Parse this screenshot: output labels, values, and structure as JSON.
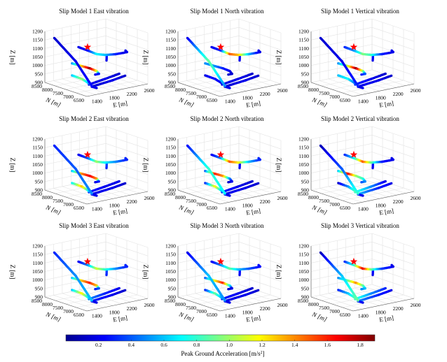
{
  "chart_data": [
    {
      "type": "scatter3d",
      "grid_position": "row1-col1",
      "title": "Slip Model 1 East vibration",
      "model": 1,
      "component": "East",
      "hotspots": {
        "upper": [
          0.2,
          0.25,
          0.7,
          0.6,
          0.3,
          0.2,
          0.2,
          0.2
        ],
        "middle": [
          0.5,
          1.3,
          1.85,
          1.2,
          0.3,
          0.2
        ],
        "lowerleft": [
          0.6,
          1.0,
          0.5
        ],
        "ramp": [
          0.15,
          0.2,
          0.25
        ],
        "floorA": [
          0.2,
          0.2,
          0.15
        ],
        "floorB": [
          0.15,
          0.2,
          0.15
        ],
        "branch": [
          0.3,
          0.2
        ],
        "stub": [
          0.2,
          0.2
        ]
      }
    },
    {
      "type": "scatter3d",
      "grid_position": "row1-col2",
      "title": "Slip Model 1 North vibration",
      "model": 1,
      "component": "North",
      "hotspots": {
        "upper": [
          0.2,
          0.3,
          1.5,
          1.3,
          0.6,
          0.3,
          0.2,
          0.2
        ],
        "middle": [
          0.5,
          0.5,
          0.3,
          0.2,
          0.15,
          0.15
        ],
        "lowerleft": [
          0.2,
          0.25,
          0.2
        ],
        "ramp": [
          0.2,
          0.9,
          0.5
        ],
        "floorA": [
          0.2,
          0.2,
          0.15
        ],
        "floorB": [
          0.15,
          0.2,
          0.15
        ],
        "branch": [
          0.3,
          0.2
        ],
        "stub": [
          0.2,
          0.2
        ]
      }
    },
    {
      "type": "scatter3d",
      "grid_position": "row1-col3",
      "title": "Slip Model 1 Vertical vibration",
      "model": 1,
      "component": "Vertical",
      "hotspots": {
        "upper": [
          0.3,
          0.5,
          0.95,
          0.8,
          0.3,
          0.2,
          0.2,
          0.2
        ],
        "middle": [
          0.5,
          1.1,
          1.85,
          1.0,
          0.4,
          0.3
        ],
        "lowerleft": [
          0.6,
          0.7,
          0.4
        ],
        "ramp": [
          0.15,
          0.2,
          0.3
        ],
        "floorA": [
          0.3,
          0.2,
          0.15
        ],
        "floorB": [
          0.2,
          0.2,
          0.15
        ],
        "branch": [
          0.3,
          0.2
        ],
        "stub": [
          0.2,
          0.2
        ]
      }
    },
    {
      "type": "scatter3d",
      "grid_position": "row2-col1",
      "title": "Slip Model 2 East vibration",
      "model": 2,
      "component": "East",
      "hotspots": {
        "upper": [
          0.2,
          0.4,
          1.0,
          0.7,
          0.5,
          0.35,
          0.3,
          0.3
        ],
        "middle": [
          0.6,
          1.4,
          1.7,
          1.4,
          0.3,
          0.2
        ],
        "lowerleft": [
          0.7,
          1.3,
          0.6
        ],
        "ramp": [
          0.3,
          0.4,
          0.5
        ],
        "floorA": [
          0.3,
          0.2,
          0.2
        ],
        "floorB": [
          0.2,
          0.2,
          0.15
        ],
        "branch": [
          0.4,
          0.3
        ],
        "stub": [
          0.2,
          0.2
        ]
      }
    },
    {
      "type": "scatter3d",
      "grid_position": "row2-col2",
      "title": "Slip Model 2 North vibration",
      "model": 2,
      "component": "North",
      "hotspots": {
        "upper": [
          0.2,
          0.5,
          1.5,
          1.2,
          0.6,
          0.4,
          0.3,
          0.3
        ],
        "middle": [
          0.4,
          1.6,
          1.4,
          0.5,
          0.2,
          0.15
        ],
        "lowerleft": [
          0.3,
          1.2,
          0.5
        ],
        "ramp": [
          0.25,
          0.8,
          0.7
        ],
        "floorA": [
          0.3,
          0.2,
          0.15
        ],
        "floorB": [
          0.2,
          0.2,
          0.15
        ],
        "branch": [
          0.3,
          0.2
        ],
        "stub": [
          0.2,
          0.2
        ]
      }
    },
    {
      "type": "scatter3d",
      "grid_position": "row2-col3",
      "title": "Slip Model 2 Vertical vibration",
      "model": 2,
      "component": "Vertical",
      "hotspots": {
        "upper": [
          0.3,
          0.7,
          1.5,
          0.9,
          0.3,
          0.2,
          0.2,
          0.2
        ],
        "middle": [
          0.6,
          1.7,
          1.0,
          0.8,
          0.5,
          0.4
        ],
        "lowerleft": [
          0.15,
          0.5,
          0.9
        ],
        "ramp": [
          0.1,
          0.4,
          0.8
        ],
        "floorA": [
          0.8,
          0.5,
          0.2
        ],
        "floorB": [
          0.6,
          0.3,
          0.2
        ],
        "branch": [
          0.3,
          0.2
        ],
        "stub": [
          0.3,
          0.2
        ]
      }
    },
    {
      "type": "scatter3d",
      "grid_position": "row3-col1",
      "title": "Slip Model 3 East vibration",
      "model": 3,
      "component": "East",
      "hotspots": {
        "upper": [
          0.2,
          0.5,
          1.1,
          0.8,
          0.5,
          0.35,
          0.3,
          0.3
        ],
        "middle": [
          0.6,
          1.3,
          1.6,
          1.3,
          0.4,
          0.3
        ],
        "lowerleft": [
          0.6,
          1.2,
          0.6
        ],
        "ramp": [
          0.3,
          0.5,
          0.6
        ],
        "floorA": [
          0.5,
          0.3,
          0.2
        ],
        "floorB": [
          0.3,
          0.2,
          0.15
        ],
        "branch": [
          0.4,
          0.3
        ],
        "stub": [
          0.2,
          0.2
        ]
      }
    },
    {
      "type": "scatter3d",
      "grid_position": "row3-col2",
      "title": "Slip Model 3 North vibration",
      "model": 3,
      "component": "North",
      "hotspots": {
        "upper": [
          0.2,
          0.5,
          0.9,
          0.6,
          0.4,
          0.3,
          0.25,
          0.25
        ],
        "middle": [
          0.4,
          1.2,
          1.6,
          0.7,
          0.2,
          0.15
        ],
        "lowerleft": [
          0.3,
          0.9,
          0.5
        ],
        "ramp": [
          0.2,
          0.6,
          0.5
        ],
        "floorA": [
          0.3,
          0.2,
          0.15
        ],
        "floorB": [
          0.2,
          0.2,
          0.15
        ],
        "branch": [
          0.3,
          0.2
        ],
        "stub": [
          0.2,
          0.2
        ]
      }
    },
    {
      "type": "scatter3d",
      "grid_position": "row3-col3",
      "title": "Slip Model 3 Vertical vibration",
      "model": 3,
      "component": "Vertical",
      "hotspots": {
        "upper": [
          0.3,
          0.8,
          1.7,
          0.9,
          0.35,
          0.25,
          0.2,
          0.2
        ],
        "middle": [
          0.5,
          0.9,
          1.4,
          0.9,
          0.6,
          0.5
        ],
        "lowerleft": [
          0.3,
          0.6,
          0.9
        ],
        "ramp": [
          0.1,
          0.6,
          0.9
        ],
        "floorA": [
          0.8,
          0.5,
          0.3
        ],
        "floorB": [
          0.5,
          0.3,
          0.2
        ],
        "branch": [
          0.3,
          0.2
        ],
        "stub": [
          0.3,
          0.2
        ]
      }
    }
  ],
  "shared": {
    "xlabel": "E [m]",
    "ylabel": "N [m]",
    "zlabel": "Z [m]",
    "x_ticks": [
      1400,
      1800,
      2200,
      2600
    ],
    "y_ticks": [
      8500,
      8000,
      7500,
      7000,
      6500
    ],
    "z_ticks": [
      900,
      950,
      1000,
      1050,
      1100,
      1150,
      1200
    ],
    "xlim": [
      1200,
      2600
    ],
    "ylim": [
      6500,
      8500
    ],
    "zlim": [
      900,
      1200
    ],
    "grid": true,
    "source_marker": {
      "symbol": "star",
      "color": "#ff0000",
      "E": 1973,
      "N": 8070,
      "Z": 1085
    },
    "tunnels": {
      "upper": [
        [
          1915,
          8380,
          1075
        ],
        [
          1900,
          7900,
          1075
        ],
        [
          1875,
          7430,
          1075
        ],
        [
          1960,
          7200,
          1075
        ],
        [
          2143,
          7080,
          1075
        ],
        [
          2300,
          7060,
          1075
        ],
        [
          2391,
          7060,
          1075
        ],
        [
          2400,
          7150,
          1080
        ]
      ],
      "branch": [
        [
          1985,
          7180,
          1072
        ],
        [
          1960,
          7140,
          1045
        ]
      ],
      "middle": [
        [
          1748,
          8340,
          990
        ],
        [
          1768,
          7910,
          990
        ],
        [
          1788,
          7580,
          990
        ],
        [
          1768,
          7210,
          990
        ],
        [
          1679,
          6920,
          990
        ],
        [
          1599,
          6930,
          990
        ]
      ],
      "lowerleft": [
        [
          1778,
          8400,
          915
        ],
        [
          1768,
          7910,
          915
        ],
        [
          1669,
          7340,
          915
        ]
      ],
      "ramp": [
        [
          1418,
          8500,
          1150
        ],
        [
          1816,
          8310,
          1000
        ],
        [
          1680,
          7260,
          905
        ]
      ],
      "floorA": [
        [
          1700,
          7440,
          905
        ],
        [
          2166,
          7640,
          905
        ],
        [
          2590,
          7840,
          905
        ]
      ],
      "floorB": [
        [
          1651,
          7200,
          905
        ],
        [
          2207,
          7380,
          905
        ],
        [
          2590,
          7560,
          905
        ]
      ],
      "stub": [
        [
          1651,
          7200,
          905
        ],
        [
          1661,
          6990,
          905
        ]
      ]
    }
  },
  "colorbar": {
    "label": "Peak Ground Acceleration [m/s",
    "label_sup": "2",
    "label_end": "]",
    "ticks": [
      0.2,
      0.4,
      0.6,
      0.8,
      1.0,
      1.2,
      1.4,
      1.6,
      1.8
    ],
    "tick_labels": [
      "0.2",
      "0.4",
      "0.6",
      "0.8",
      "1.0",
      "1.2",
      "1.4",
      "1.6",
      "1.8"
    ],
    "range": [
      0.0,
      1.89
    ],
    "colormap": "jet",
    "orientation": "horizontal",
    "placement": "bottom"
  }
}
